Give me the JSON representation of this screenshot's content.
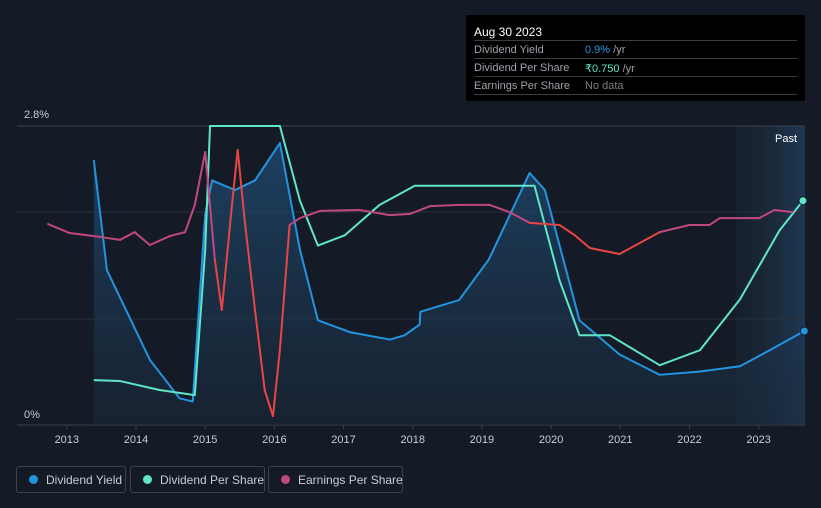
{
  "tooltip": {
    "date": "Aug 30 2023",
    "rows": [
      {
        "label": "Dividend Yield",
        "value": "0.9%",
        "unit": " /yr",
        "color": "#2394df"
      },
      {
        "label": "Dividend Per Share",
        "value": "₹0.750",
        "unit": " /yr",
        "color": "#5ee6c8"
      },
      {
        "label": "Earnings Per Share",
        "value": "No data",
        "unit": "",
        "color": "#7a7f87"
      }
    ]
  },
  "legend": [
    {
      "label": "Dividend Yield",
      "color": "#2394df"
    },
    {
      "label": "Dividend Per Share",
      "color": "#5ee6c8"
    },
    {
      "label": "Earnings Per Share",
      "color": "#c1487e"
    }
  ],
  "chart_data": {
    "type": "line",
    "y_labels": {
      "top": "2.8%",
      "bottom": "0%"
    },
    "ylim": [
      0,
      2.8
    ],
    "xlim": [
      2012.28,
      2023.67
    ],
    "x_ticks": [
      "2013",
      "2014",
      "2015",
      "2016",
      "2017",
      "2018",
      "2019",
      "2020",
      "2021",
      "2022",
      "2023"
    ],
    "past_label": "Past",
    "past_start": 2022.67,
    "series": [
      {
        "name": "Dividend Yield",
        "unit": "%",
        "color": "#2394df",
        "points": [
          [
            2013.39,
            2.48
          ],
          [
            2013.58,
            1.45
          ],
          [
            2014.2,
            0.61
          ],
          [
            2014.63,
            0.25
          ],
          [
            2014.82,
            0.22
          ],
          [
            2015.0,
            1.97
          ],
          [
            2015.1,
            2.29
          ],
          [
            2015.43,
            2.2
          ],
          [
            2015.72,
            2.29
          ],
          [
            2016.08,
            2.64
          ],
          [
            2016.37,
            1.64
          ],
          [
            2016.63,
            0.98
          ],
          [
            2017.09,
            0.87
          ],
          [
            2017.67,
            0.8
          ],
          [
            2017.88,
            0.84
          ],
          [
            2018.1,
            0.94
          ],
          [
            2018.11,
            1.06
          ],
          [
            2018.67,
            1.17
          ],
          [
            2019.1,
            1.55
          ],
          [
            2019.69,
            2.36
          ],
          [
            2019.91,
            2.2
          ],
          [
            2020.41,
            0.98
          ],
          [
            2020.99,
            0.66
          ],
          [
            2021.57,
            0.47
          ],
          [
            2022.14,
            0.5
          ],
          [
            2022.73,
            0.55
          ],
          [
            2023.16,
            0.7
          ],
          [
            2023.66,
            0.88
          ]
        ]
      },
      {
        "name": "Dividend Per Share",
        "unit": "₹",
        "color": "#5ee6c8",
        "ylim": [
          0,
          1.0
        ],
        "points": [
          [
            2013.39,
            0.15
          ],
          [
            2013.77,
            0.147
          ],
          [
            2014.34,
            0.117
          ],
          [
            2014.85,
            0.1
          ],
          [
            2015.0,
            0.585
          ],
          [
            2015.07,
            1.0
          ],
          [
            2016.08,
            1.0
          ],
          [
            2016.37,
            0.75
          ],
          [
            2016.63,
            0.6
          ],
          [
            2017.02,
            0.635
          ],
          [
            2017.52,
            0.736
          ],
          [
            2018.03,
            0.8
          ],
          [
            2019.76,
            0.8
          ],
          [
            2020.12,
            0.485
          ],
          [
            2020.41,
            0.3
          ],
          [
            2020.85,
            0.3
          ],
          [
            2021.57,
            0.2
          ],
          [
            2022.15,
            0.25
          ],
          [
            2022.73,
            0.42
          ],
          [
            2023.3,
            0.65
          ],
          [
            2023.64,
            0.75
          ]
        ]
      },
      {
        "name": "Earnings Per Share",
        "unit": "relative",
        "color": "#c1487e",
        "decline_color": "#e84545",
        "decline_ranges": [
          [
            2015.1,
            2016.25
          ],
          [
            2019.75,
            2021.6
          ]
        ],
        "ylim": [
          0,
          1.0
        ],
        "points": [
          [
            2012.73,
            0.672
          ],
          [
            2013.04,
            0.642
          ],
          [
            2013.48,
            0.629
          ],
          [
            2013.77,
            0.619
          ],
          [
            2013.98,
            0.645
          ],
          [
            2014.2,
            0.602
          ],
          [
            2014.49,
            0.632
          ],
          [
            2014.71,
            0.645
          ],
          [
            2014.85,
            0.736
          ],
          [
            2015.0,
            0.913
          ],
          [
            2015.14,
            0.552
          ],
          [
            2015.24,
            0.385
          ],
          [
            2015.38,
            0.719
          ],
          [
            2015.47,
            0.92
          ],
          [
            2015.57,
            0.686
          ],
          [
            2015.72,
            0.385
          ],
          [
            2015.86,
            0.117
          ],
          [
            2015.98,
            0.03
          ],
          [
            2016.08,
            0.251
          ],
          [
            2016.22,
            0.669
          ],
          [
            2016.37,
            0.692
          ],
          [
            2016.66,
            0.716
          ],
          [
            2017.23,
            0.719
          ],
          [
            2017.67,
            0.702
          ],
          [
            2017.96,
            0.706
          ],
          [
            2018.25,
            0.732
          ],
          [
            2018.68,
            0.736
          ],
          [
            2019.11,
            0.736
          ],
          [
            2019.4,
            0.712
          ],
          [
            2019.69,
            0.676
          ],
          [
            2020.12,
            0.669
          ],
          [
            2020.34,
            0.635
          ],
          [
            2020.56,
            0.592
          ],
          [
            2020.99,
            0.572
          ],
          [
            2021.57,
            0.645
          ],
          [
            2022.0,
            0.669
          ],
          [
            2022.29,
            0.669
          ],
          [
            2022.44,
            0.692
          ],
          [
            2023.01,
            0.692
          ],
          [
            2023.23,
            0.719
          ],
          [
            2023.49,
            0.712
          ]
        ]
      }
    ]
  }
}
